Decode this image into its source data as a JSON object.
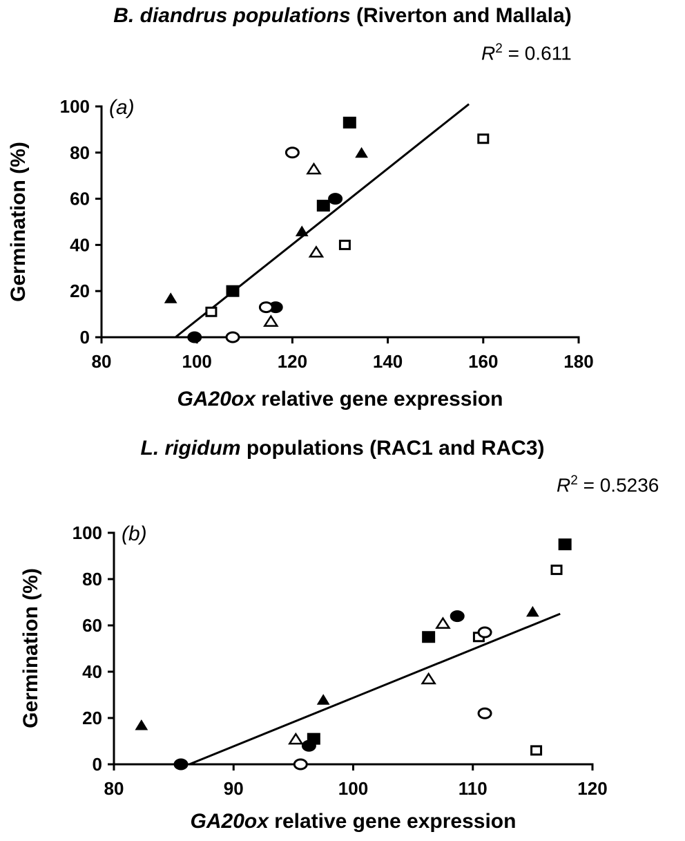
{
  "chart_data": [
    {
      "type": "scatter",
      "panel": "(a)",
      "title_italic": "B. diandrus populations",
      "title_rest": " (Riverton and Mallala)",
      "r2_symbol": "R",
      "r2_sup": "2",
      "r2_value": " = 0.611",
      "xlabel_italic": "GA20ox",
      "xlabel_rest": " relative gene expression",
      "ylabel": "Germination (%)",
      "xlim": [
        80,
        180
      ],
      "ylim": [
        0,
        100
      ],
      "xticks": [
        80,
        100,
        120,
        140,
        160,
        180
      ],
      "yticks": [
        0,
        20,
        40,
        60,
        80,
        100
      ],
      "series": [
        {
          "marker": "square-filled",
          "points": [
            [
              132,
              93
            ],
            [
              126.5,
              57
            ],
            [
              107.5,
              20
            ]
          ]
        },
        {
          "marker": "square-open",
          "points": [
            [
              160,
              86
            ],
            [
              131,
              40
            ],
            [
              103,
              11
            ]
          ]
        },
        {
          "marker": "triangle-filled",
          "points": [
            [
              134.5,
              80
            ],
            [
              122,
              46
            ],
            [
              94.5,
              17
            ]
          ]
        },
        {
          "marker": "triangle-open",
          "points": [
            [
              124.5,
              73
            ],
            [
              125,
              37
            ],
            [
              115.5,
              7
            ]
          ]
        },
        {
          "marker": "circle-filled",
          "points": [
            [
              129,
              60
            ],
            [
              116.5,
              13
            ],
            [
              99.5,
              0
            ]
          ]
        },
        {
          "marker": "circle-open",
          "points": [
            [
              120,
              80
            ],
            [
              114.5,
              13
            ],
            [
              107.5,
              0
            ]
          ]
        }
      ],
      "trendline": {
        "x": [
          95.5,
          157
        ],
        "y": [
          0,
          101
        ]
      }
    },
    {
      "type": "scatter",
      "panel": "(b)",
      "title_italic": "L. rigidum",
      "title_rest": " populations (RAC1 and RAC3)",
      "r2_symbol": "R",
      "r2_sup": "2",
      "r2_value": " = 0.5236",
      "xlabel_italic": "GA20ox",
      "xlabel_rest": " relative gene expression",
      "ylabel": "Germination (%)",
      "xlim": [
        80,
        120
      ],
      "ylim": [
        0,
        100
      ],
      "xticks": [
        80,
        90,
        100,
        110,
        120
      ],
      "yticks": [
        0,
        20,
        40,
        60,
        80,
        100
      ],
      "series": [
        {
          "marker": "square-filled",
          "points": [
            [
              117.7,
              95
            ],
            [
              106.3,
              55
            ],
            [
              96.7,
              11
            ]
          ]
        },
        {
          "marker": "square-open",
          "points": [
            [
              117,
              84
            ],
            [
              110.5,
              55
            ],
            [
              115.3,
              6
            ]
          ]
        },
        {
          "marker": "triangle-filled",
          "points": [
            [
              115,
              66
            ],
            [
              97.5,
              28
            ],
            [
              82.3,
              17
            ]
          ]
        },
        {
          "marker": "triangle-open",
          "points": [
            [
              107.5,
              61
            ],
            [
              106.3,
              37
            ],
            [
              95.2,
              11
            ]
          ]
        },
        {
          "marker": "circle-filled",
          "points": [
            [
              108.7,
              64
            ],
            [
              96.3,
              8
            ],
            [
              85.6,
              0
            ]
          ]
        },
        {
          "marker": "circle-open",
          "points": [
            [
              111,
              57
            ],
            [
              111,
              22
            ],
            [
              95.6,
              0
            ]
          ]
        }
      ],
      "trendline": {
        "x": [
          86.3,
          117.3
        ],
        "y": [
          0,
          65
        ]
      }
    }
  ]
}
